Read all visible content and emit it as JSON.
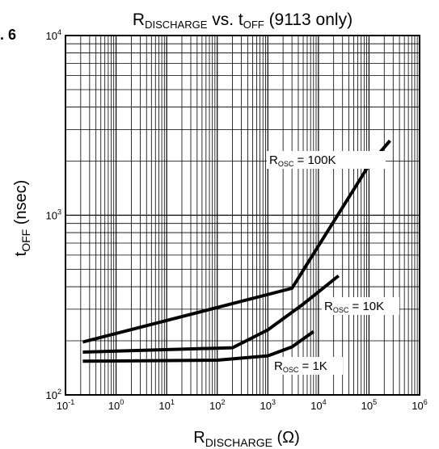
{
  "figure_label": ". 6",
  "chart_data": {
    "type": "line",
    "title": {
      "main": "R",
      "sub": "DISCHARGE",
      "rest": " vs. t",
      "sub2": "OFF",
      "rest2": " (9113 only)"
    },
    "xlabel": {
      "main": "R",
      "sub": "DISCHARGE",
      "rest": " (Ω)"
    },
    "ylabel": {
      "main": "t",
      "sub": "OFF",
      "rest": " (nsec)"
    },
    "x_scale": "log",
    "y_scale": "log",
    "xlim": [
      0.1,
      1000000
    ],
    "ylim": [
      100,
      10000
    ],
    "grid": true,
    "x_ticks": [
      {
        "base": "10",
        "exp": "-1",
        "value": 0.1
      },
      {
        "base": "10",
        "exp": "0",
        "value": 1
      },
      {
        "base": "10",
        "exp": "1",
        "value": 10
      },
      {
        "base": "10",
        "exp": "2",
        "value": 100
      },
      {
        "base": "10",
        "exp": "3",
        "value": 1000
      },
      {
        "base": "10",
        "exp": "4",
        "value": 10000
      },
      {
        "base": "10",
        "exp": "5",
        "value": 100000
      },
      {
        "base": "10",
        "exp": "6",
        "value": 1000000
      }
    ],
    "y_ticks": [
      {
        "base": "10",
        "exp": "2",
        "value": 100
      },
      {
        "base": "10",
        "exp": "3",
        "value": 1000
      },
      {
        "base": "10",
        "exp": "4",
        "value": 10000
      }
    ],
    "series": [
      {
        "label": {
          "main": "R",
          "sub": "OSC",
          "rest": " = 100K"
        },
        "x": [
          0.22,
          3000,
          100000,
          260000
        ],
        "y": [
          197,
          392,
          1900,
          2600
        ]
      },
      {
        "label": {
          "main": "R",
          "sub": "OSC",
          "rest": " = 10K"
        },
        "x": [
          0.22,
          200,
          1000,
          5000,
          25000
        ],
        "y": [
          173,
          183,
          230,
          320,
          460
        ]
      },
      {
        "label": {
          "main": "R",
          "sub": "OSC",
          "rest": " = 1K"
        },
        "x": [
          0.22,
          100,
          1000,
          3000,
          8000
        ],
        "y": [
          154,
          156,
          165,
          185,
          225
        ]
      }
    ]
  }
}
